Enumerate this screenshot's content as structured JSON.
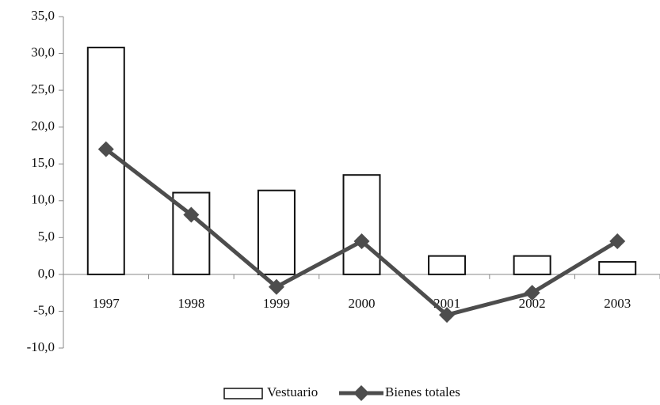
{
  "chart_data": {
    "type": "bar-line",
    "categories": [
      "1997",
      "1998",
      "1999",
      "2000",
      "2001",
      "2002",
      "2003"
    ],
    "series": [
      {
        "name": "Vestuario",
        "type": "bar",
        "color": "#ffffff",
        "values": [
          30.8,
          11.1,
          11.4,
          13.5,
          2.5,
          2.5,
          1.7
        ]
      },
      {
        "name": "Bienes totales",
        "type": "line",
        "color": "#4d4d4d",
        "values": [
          17.0,
          8.1,
          -1.7,
          4.5,
          -5.5,
          -2.5,
          4.5
        ]
      }
    ],
    "ylim": [
      -10,
      35
    ],
    "yticks": [
      {
        "value": -10,
        "label": "-10,0"
      },
      {
        "value": -5,
        "label": "-5,0"
      },
      {
        "value": 0,
        "label": "0,0"
      },
      {
        "value": 5,
        "label": "5,0"
      },
      {
        "value": 10,
        "label": "10,0"
      },
      {
        "value": 15,
        "label": "15,0"
      },
      {
        "value": 20,
        "label": "20,0"
      },
      {
        "value": 25,
        "label": "25,0"
      },
      {
        "value": 30,
        "label": "30,0"
      },
      {
        "value": 35,
        "label": "35,0"
      }
    ],
    "grid": false,
    "legend": "bottom"
  }
}
